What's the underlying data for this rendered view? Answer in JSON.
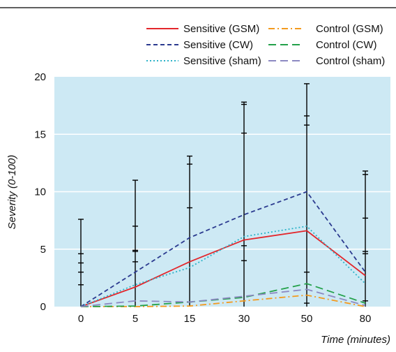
{
  "chart_data": {
    "type": "line",
    "title": "",
    "xlabel": "Time (minutes)",
    "ylabel": "Severity (0-100)",
    "ylim": [
      0,
      20
    ],
    "yticks": [
      "0",
      "5",
      "10",
      "15",
      "20"
    ],
    "categories": [
      "0",
      "5",
      "15",
      "30",
      "50",
      "80"
    ],
    "legend_position": "top-right",
    "plot_background": "#cde9f4",
    "series": [
      {
        "name": "Sensitive (GSM)",
        "color": "#e3262b",
        "dash": "solid",
        "values": [
          0,
          1.7,
          3.9,
          5.8,
          6.6,
          2.7
        ]
      },
      {
        "name": "Sensitive (CW)",
        "color": "#2b3a8f",
        "dash": "dash",
        "values": [
          0,
          3.0,
          6.0,
          8.0,
          10.0,
          3.0
        ]
      },
      {
        "name": "Sensitive (sham)",
        "color": "#2cb3c8",
        "dash": "dot",
        "values": [
          0,
          1.9,
          3.4,
          6.1,
          7.0,
          2.0
        ]
      },
      {
        "name": "Control (GSM)",
        "color": "#f39a1f",
        "dash": "dashdot",
        "values": [
          0,
          0,
          0.05,
          0.5,
          1.0,
          0
        ]
      },
      {
        "name": "Control (CW)",
        "color": "#23a14a",
        "dash": "longdash",
        "values": [
          0,
          0.05,
          0.4,
          0.8,
          2.0,
          0.3
        ]
      },
      {
        "name": "Control (sham)",
        "color": "#8c89c2",
        "dash": "longdash",
        "values": [
          0,
          0.5,
          0.4,
          0.9,
          1.5,
          0.1
        ]
      }
    ],
    "error_bars": [
      {
        "x": "0",
        "low": 0,
        "caps": [
          7.6,
          4.6,
          3.8,
          3.0,
          1.9
        ]
      },
      {
        "x": "5",
        "low": 0,
        "caps": [
          11.0,
          7.0,
          4.9,
          4.8,
          3.9
        ]
      },
      {
        "x": "15",
        "low": 0,
        "caps": [
          13.1,
          12.4,
          8.6,
          0.4
        ]
      },
      {
        "x": "30",
        "low": 0,
        "caps": [
          17.8,
          17.6,
          15.1,
          5.3,
          4.0
        ]
      },
      {
        "x": "50",
        "low": 0,
        "caps": [
          19.4,
          16.6,
          15.8,
          3.0,
          0.3
        ]
      },
      {
        "x": "80",
        "low": 0,
        "caps": [
          11.8,
          11.5,
          7.7,
          4.8,
          4.6,
          0.5
        ]
      }
    ]
  }
}
